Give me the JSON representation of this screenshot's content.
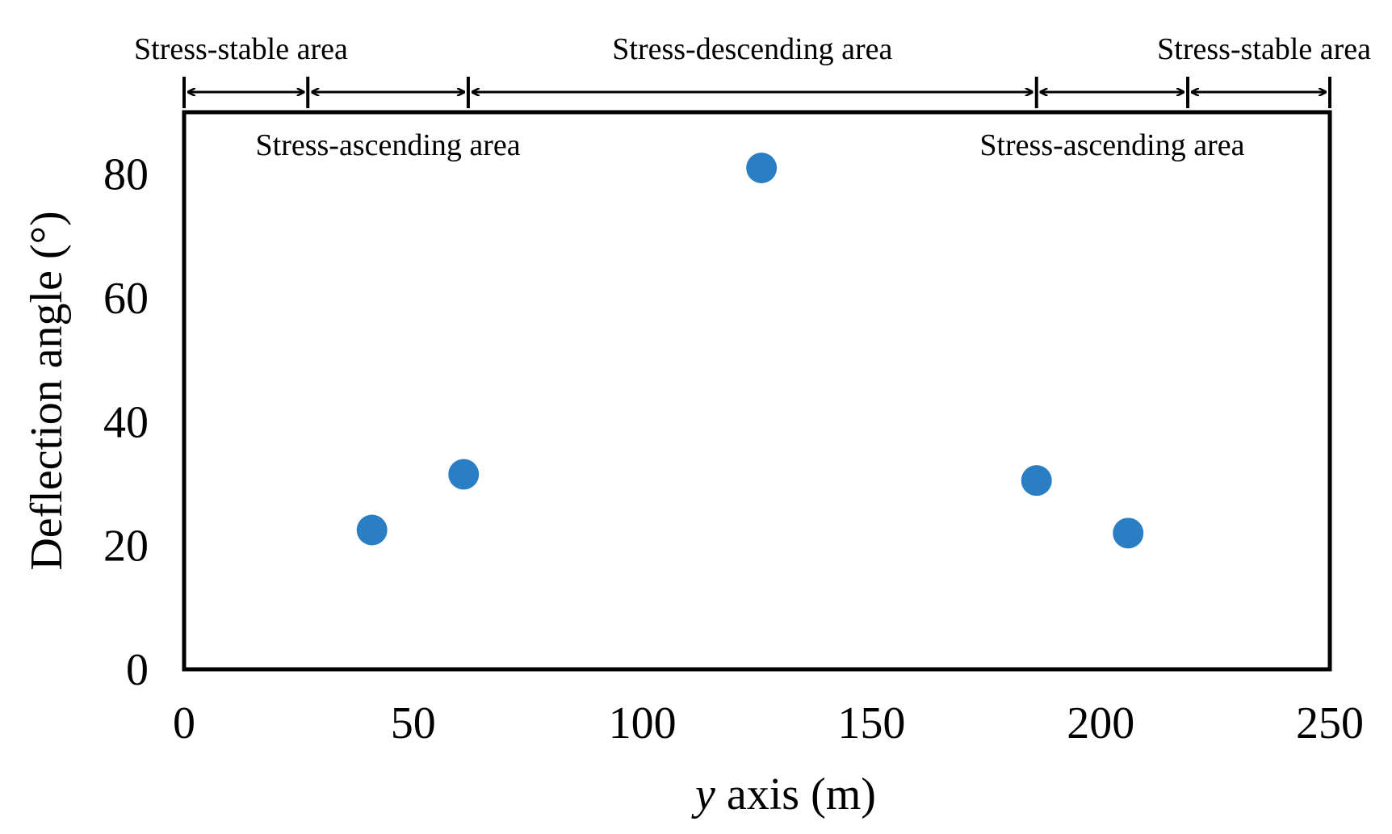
{
  "chart_data": {
    "type": "scatter",
    "title": "",
    "xlabel_var": "y",
    "xlabel_rest": " axis (m)",
    "ylabel": "Deflection angle (°)",
    "xlim": [
      0,
      250
    ],
    "ylim": [
      0,
      90
    ],
    "xticks": [
      0,
      50,
      100,
      150,
      200,
      250
    ],
    "yticks": [
      0,
      20,
      40,
      60,
      80
    ],
    "grid": false,
    "series": [
      {
        "name": "Deflection angle",
        "color": "#2a7fc4",
        "points": [
          {
            "x": 41,
            "y": 22.5
          },
          {
            "x": 61,
            "y": 31.5
          },
          {
            "x": 126,
            "y": 81
          },
          {
            "x": 186,
            "y": 30.5
          },
          {
            "x": 206,
            "y": 22
          }
        ]
      }
    ],
    "region_boundaries": [
      0,
      27,
      62,
      186,
      219,
      250
    ],
    "regions": [
      {
        "label": "Stress-stable area",
        "from": 0,
        "to": 27,
        "row": "top"
      },
      {
        "label": "Stress-ascending area",
        "from": 27,
        "to": 62,
        "row": "inside"
      },
      {
        "label": "Stress-descending area",
        "from": 62,
        "to": 186,
        "row": "top"
      },
      {
        "label": "Stress-ascending area",
        "from": 186,
        "to": 219,
        "row": "inside"
      },
      {
        "label": "Stress-stable area",
        "from": 219,
        "to": 250,
        "row": "top"
      }
    ]
  }
}
